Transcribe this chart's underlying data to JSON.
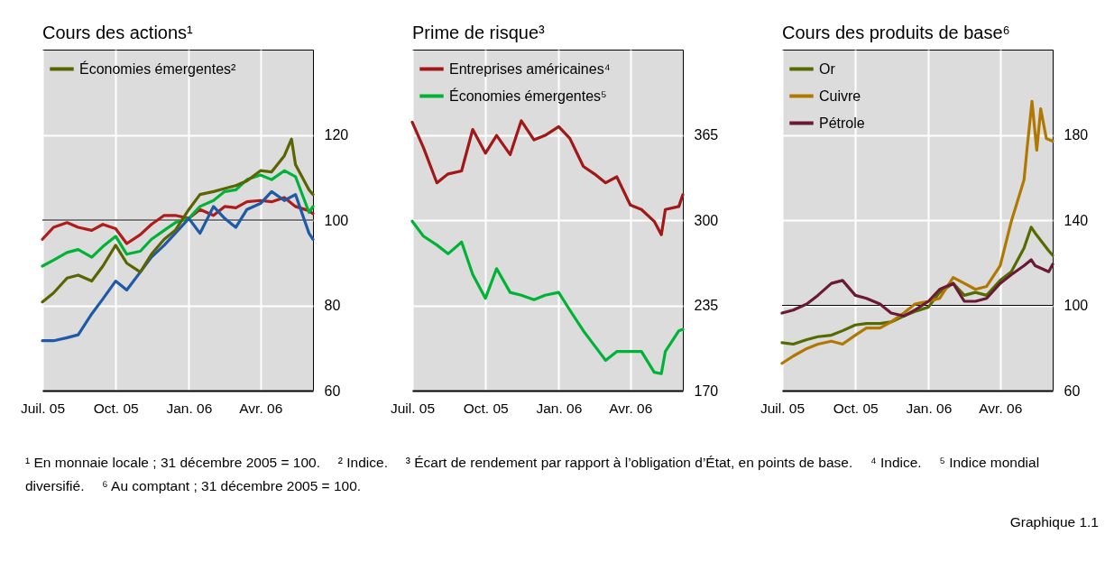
{
  "chart_data": [
    {
      "type": "line",
      "title": "Cours des actions¹",
      "xlim": [
        "2005-07-01",
        "2006-06-06"
      ],
      "xticks": [
        {
          "value": "2005-07-01",
          "label": "Juil. 05"
        },
        {
          "value": "2005-10-01",
          "label": "Oct. 05"
        },
        {
          "value": "2006-01-01",
          "label": "Jan. 06"
        },
        {
          "value": "2006-04-01",
          "label": "Avr. 06"
        }
      ],
      "ylim": [
        60,
        140
      ],
      "yticks": [
        60,
        80,
        100,
        120
      ],
      "grid": true,
      "legend": "top left",
      "ref_lines": [
        {
          "axis": "y",
          "value": 100
        }
      ],
      "annotations": [
        "¹ En monnaie locale ; 31 décembre 2005 = 100.",
        "² Indice.",
        "³ Écart de rendement par rapport à l’obligation d’État, en points de base.",
        "⁴ Indice.",
        "⁵ Indice mondial diversifié.",
        "⁶ Au comptant ; 31 décembre 2005 = 100."
      ],
      "series": [
        {
          "color": "#b01c1c",
          "x": [
            "2005-07-01",
            "2005-07-15",
            "2005-08-01",
            "2005-08-15",
            "2005-09-01",
            "2005-09-15",
            "2005-10-01",
            "2005-10-15",
            "2005-11-01",
            "2005-11-15",
            "2005-12-01",
            "2005-12-15",
            "2006-01-01",
            "2006-01-15",
            "2006-02-01",
            "2006-02-15",
            "2006-03-01",
            "2006-03-15",
            "2006-04-01",
            "2006-04-15",
            "2006-05-01",
            "2006-05-15",
            "2006-06-01",
            "2006-06-06"
          ],
          "values": [
            95.5,
            98.3,
            99.4,
            98.3,
            97.6,
            99.0,
            98.0,
            94.5,
            96.6,
            99.0,
            101.1,
            101.1,
            100.4,
            102.5,
            101.1,
            103.2,
            102.9,
            104.3,
            104.6,
            104.3,
            105.3,
            103.2,
            102.2,
            101.5
          ]
        },
        {
          "color": "#00b336",
          "x": [
            "2005-07-01",
            "2005-07-15",
            "2005-08-01",
            "2005-08-15",
            "2005-09-01",
            "2005-09-15",
            "2005-10-01",
            "2005-10-15",
            "2005-11-01",
            "2005-11-15",
            "2005-12-01",
            "2005-12-15",
            "2006-01-01",
            "2006-01-15",
            "2006-02-01",
            "2006-02-15",
            "2006-03-01",
            "2006-03-15",
            "2006-04-01",
            "2006-04-15",
            "2006-05-01",
            "2006-05-15",
            "2006-06-01",
            "2006-06-06"
          ],
          "values": [
            89.2,
            90.6,
            92.4,
            93.1,
            91.3,
            93.8,
            96.2,
            92.0,
            92.7,
            95.5,
            97.6,
            99.4,
            100.4,
            103.2,
            104.6,
            106.7,
            107.1,
            109.5,
            110.6,
            109.5,
            111.6,
            110.2,
            101.8,
            103.2
          ]
        },
        {
          "color": "#1f5aa6",
          "x": [
            "2005-07-01",
            "2005-07-15",
            "2005-08-01",
            "2005-08-15",
            "2005-09-01",
            "2005-09-15",
            "2005-10-01",
            "2005-10-15",
            "2005-11-01",
            "2005-11-15",
            "2005-12-01",
            "2005-12-15",
            "2006-01-01",
            "2006-01-15",
            "2006-02-01",
            "2006-02-15",
            "2006-03-01",
            "2006-03-15",
            "2006-04-01",
            "2006-04-15",
            "2006-05-01",
            "2006-05-15",
            "2006-06-01",
            "2006-06-06"
          ],
          "values": [
            71.7,
            71.7,
            72.4,
            73.1,
            78.0,
            81.5,
            85.7,
            83.6,
            87.8,
            91.3,
            94.1,
            96.9,
            100.4,
            96.9,
            103.2,
            100.4,
            98.3,
            102.5,
            103.9,
            106.7,
            104.6,
            106.0,
            96.9,
            95.5
          ]
        },
        {
          "name": "Économies émergentes²",
          "color": "#5a6400",
          "x": [
            "2005-07-01",
            "2005-07-15",
            "2005-08-01",
            "2005-08-15",
            "2005-09-01",
            "2005-09-15",
            "2005-10-01",
            "2005-10-15",
            "2005-11-01",
            "2005-11-15",
            "2005-12-01",
            "2005-12-15",
            "2006-01-01",
            "2006-01-15",
            "2006-02-01",
            "2006-02-15",
            "2006-03-01",
            "2006-03-15",
            "2006-04-01",
            "2006-04-15",
            "2006-05-01",
            "2006-05-10",
            "2006-05-15",
            "2006-06-01",
            "2006-06-06"
          ],
          "values": [
            80.8,
            82.9,
            86.4,
            87.1,
            85.7,
            89.2,
            94.1,
            89.9,
            87.8,
            92.0,
            95.5,
            97.6,
            102.5,
            106.0,
            106.7,
            107.4,
            108.1,
            109.2,
            111.6,
            111.3,
            115.1,
            119.0,
            113.0,
            107.1,
            106.0
          ]
        }
      ]
    },
    {
      "type": "line",
      "title": "Prime de risque³",
      "xlim": [
        "2005-07-01",
        "2006-06-06"
      ],
      "xticks": [
        {
          "value": "2005-07-01",
          "label": "Juil. 05"
        },
        {
          "value": "2005-10-01",
          "label": "Oct. 05"
        },
        {
          "value": "2006-01-01",
          "label": "Jan. 06"
        },
        {
          "value": "2006-04-01",
          "label": "Avr. 06"
        }
      ],
      "ylim": [
        170,
        430
      ],
      "yticks": [
        170,
        235,
        300,
        365
      ],
      "grid": true,
      "legend": "top left",
      "series": [
        {
          "name": "Entreprises américaines⁴",
          "color": "#a01818",
          "x": [
            "2005-07-01",
            "2005-07-15",
            "2005-08-01",
            "2005-08-15",
            "2005-09-01",
            "2005-09-15",
            "2005-10-01",
            "2005-10-15",
            "2005-11-01",
            "2005-11-15",
            "2005-12-01",
            "2005-12-15",
            "2006-01-01",
            "2006-01-15",
            "2006-02-01",
            "2006-02-15",
            "2006-03-01",
            "2006-03-15",
            "2006-04-01",
            "2006-04-15",
            "2006-05-01",
            "2006-05-10",
            "2006-05-15",
            "2006-06-01",
            "2006-06-06"
          ],
          "values": [
            374.7,
            355.5,
            328.4,
            335.2,
            337.5,
            369.1,
            351.0,
            364.6,
            349.9,
            375.8,
            361.2,
            364.6,
            371.3,
            362.3,
            340.9,
            335.2,
            328.4,
            333.0,
            311.5,
            308.1,
            299.1,
            288.9,
            308.1,
            310.4,
            319.4
          ]
        },
        {
          "name": "Économies émergentes⁵",
          "color": "#00b336",
          "x": [
            "2005-07-01",
            "2005-07-15",
            "2005-08-01",
            "2005-08-15",
            "2005-09-01",
            "2005-09-15",
            "2005-10-01",
            "2005-10-15",
            "2005-11-01",
            "2005-11-15",
            "2005-12-01",
            "2005-12-15",
            "2006-01-01",
            "2006-01-15",
            "2006-02-01",
            "2006-02-15",
            "2006-03-01",
            "2006-03-15",
            "2006-04-01",
            "2006-04-15",
            "2006-05-01",
            "2006-05-10",
            "2006-05-15",
            "2006-06-01",
            "2006-06-06"
          ],
          "values": [
            299.1,
            287.8,
            281.0,
            274.3,
            283.3,
            258.5,
            240.4,
            263.0,
            244.9,
            242.7,
            239.3,
            242.7,
            244.9,
            231.4,
            215.6,
            204.3,
            193.0,
            199.8,
            199.8,
            199.8,
            184.0,
            182.9,
            199.8,
            215.6,
            216.7
          ]
        }
      ]
    },
    {
      "type": "line",
      "title": "Cours des produits de base⁶",
      "xlim": [
        "2005-07-01",
        "2006-06-06"
      ],
      "xticks": [
        {
          "value": "2005-07-01",
          "label": "Juil. 05"
        },
        {
          "value": "2005-10-01",
          "label": "Oct. 05"
        },
        {
          "value": "2006-01-01",
          "label": "Jan. 06"
        },
        {
          "value": "2006-04-01",
          "label": "Avr. 06"
        }
      ],
      "ylim": [
        60,
        220
      ],
      "yticks": [
        60,
        100,
        140,
        180
      ],
      "grid": true,
      "legend": "top left",
      "ref_lines": [
        {
          "axis": "y",
          "value": 100
        }
      ],
      "annotations": [
        "Graphique 1.1"
      ],
      "series": [
        {
          "name": "Or",
          "color": "#556b00",
          "x": [
            "2005-07-01",
            "2005-07-15",
            "2005-08-01",
            "2005-08-15",
            "2005-09-01",
            "2005-09-15",
            "2005-10-01",
            "2005-10-15",
            "2005-11-01",
            "2005-11-15",
            "2005-12-01",
            "2005-12-15",
            "2006-01-01",
            "2006-01-15",
            "2006-02-01",
            "2006-02-15",
            "2006-03-01",
            "2006-03-15",
            "2006-04-01",
            "2006-04-15",
            "2006-05-01",
            "2006-05-10",
            "2006-05-15",
            "2006-06-01",
            "2006-06-06"
          ],
          "values": [
            82.5,
            81.8,
            83.9,
            85.3,
            86.0,
            88.1,
            90.8,
            91.5,
            91.5,
            92.2,
            95.0,
            97.1,
            99.2,
            106.1,
            110.3,
            104.7,
            106.1,
            104.7,
            111.7,
            115.8,
            126.9,
            136.7,
            133.9,
            125.6,
            123.5
          ]
        },
        {
          "name": "Cuivre",
          "color": "#b07800",
          "x": [
            "2005-07-01",
            "2005-07-15",
            "2005-08-01",
            "2005-08-15",
            "2005-09-01",
            "2005-09-15",
            "2005-10-01",
            "2005-10-15",
            "2005-11-01",
            "2005-11-15",
            "2005-12-01",
            "2005-12-15",
            "2006-01-01",
            "2006-01-15",
            "2006-02-01",
            "2006-02-15",
            "2006-03-01",
            "2006-03-15",
            "2006-04-01",
            "2006-04-15",
            "2006-05-01",
            "2006-05-05",
            "2006-05-11",
            "2006-05-17",
            "2006-05-22",
            "2006-05-29",
            "2006-06-06"
          ],
          "values": [
            72.8,
            76.2,
            79.7,
            81.8,
            83.2,
            81.8,
            86.0,
            89.4,
            89.4,
            92.2,
            96.4,
            100.6,
            101.9,
            103.3,
            113.1,
            110.3,
            107.5,
            108.9,
            118.6,
            139.4,
            158.9,
            174.2,
            195.7,
            172.8,
            192.2,
            178.3,
            177.0
          ]
        },
        {
          "name": "Pétrole",
          "color": "#6b1a35",
          "x": [
            "2005-07-01",
            "2005-07-15",
            "2005-08-01",
            "2005-08-15",
            "2005-09-01",
            "2005-09-15",
            "2005-10-01",
            "2005-10-15",
            "2005-11-01",
            "2005-11-15",
            "2005-12-01",
            "2005-12-15",
            "2006-01-01",
            "2006-01-15",
            "2006-02-01",
            "2006-02-15",
            "2006-03-01",
            "2006-03-15",
            "2006-04-01",
            "2006-04-15",
            "2006-05-01",
            "2006-05-10",
            "2006-05-15",
            "2006-06-01",
            "2006-06-06"
          ],
          "values": [
            96.4,
            97.8,
            100.6,
            104.7,
            110.3,
            111.7,
            104.7,
            103.3,
            100.6,
            96.4,
            95.0,
            97.8,
            101.9,
            107.5,
            110.3,
            101.9,
            101.9,
            103.3,
            110.3,
            114.4,
            118.6,
            121.4,
            118.6,
            115.8,
            119.3
          ]
        }
      ]
    }
  ]
}
